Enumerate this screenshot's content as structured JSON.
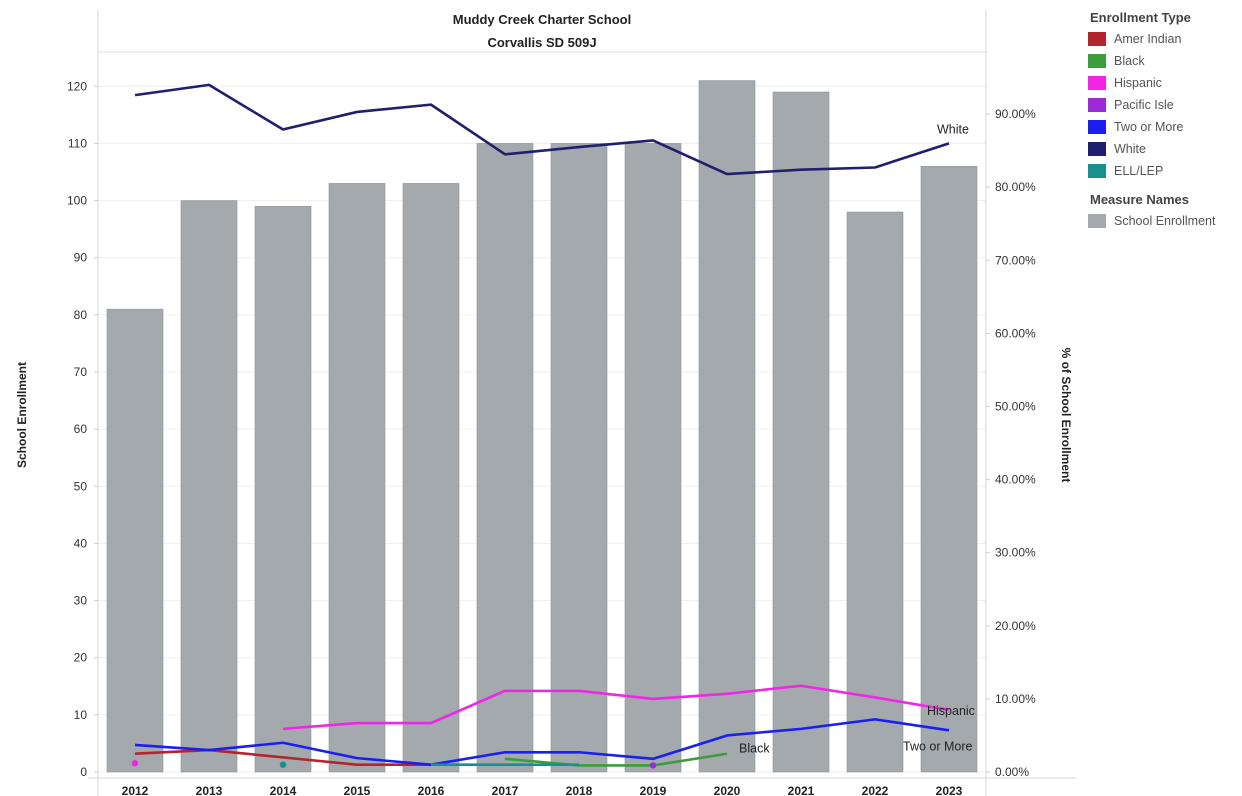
{
  "chart_data": {
    "type": "bar",
    "title": "Muddy Creek Charter School",
    "subtitle": "Corvallis SD 509J",
    "ylabel_left": "School Enrollment",
    "ylabel_right": "% of School Enrollment",
    "left_ylim": [
      0,
      126
    ],
    "left_ticks": [
      0,
      10,
      20,
      30,
      40,
      50,
      60,
      70,
      80,
      90,
      100,
      110,
      120
    ],
    "right_ylim": [
      0,
      0.985
    ],
    "right_ticks": [
      0,
      0.1,
      0.2,
      0.3,
      0.4,
      0.5,
      0.6,
      0.7,
      0.8,
      0.9
    ],
    "right_tick_labels": [
      "0.00%",
      "10.00%",
      "20.00%",
      "30.00%",
      "40.00%",
      "50.00%",
      "60.00%",
      "70.00%",
      "80.00%",
      "90.00%"
    ],
    "categories": [
      "2012",
      "2013",
      "2014",
      "2015",
      "2016",
      "2017",
      "2018",
      "2019",
      "2020",
      "2021",
      "2022",
      "2023"
    ],
    "bars": {
      "name": "School Enrollment",
      "color": "#a3a9ad",
      "values": [
        81,
        100,
        99,
        103,
        103,
        110,
        110,
        110,
        121,
        119,
        98,
        106
      ]
    },
    "series": [
      {
        "name": "Amer Indian",
        "color": "#b3242b",
        "label": "",
        "values": [
          0.025,
          0.03,
          0.02,
          0.01,
          0.01,
          null,
          null,
          null,
          null,
          null,
          null,
          null
        ]
      },
      {
        "name": "Black",
        "color": "#3b9e3b",
        "label": "Black",
        "values": [
          null,
          null,
          null,
          null,
          null,
          0.018,
          0.009,
          0.009,
          0.025,
          null,
          null,
          null
        ]
      },
      {
        "name": "Hispanic",
        "color": "#f025e6",
        "label": "Hispanic",
        "values": [
          0.012,
          null,
          0.059,
          0.067,
          0.067,
          0.111,
          0.111,
          0.1,
          0.107,
          0.118,
          0.102,
          0.085
        ]
      },
      {
        "name": "Pacific Isle",
        "color": "#9b2bd6",
        "label": "",
        "values": [
          null,
          null,
          null,
          null,
          null,
          null,
          null,
          0.009,
          null,
          null,
          null,
          null
        ]
      },
      {
        "name": "Two or More",
        "color": "#1a1ff0",
        "label": "Two or More",
        "values": [
          0.037,
          0.03,
          0.04,
          0.019,
          0.01,
          0.027,
          0.027,
          0.018,
          0.05,
          0.059,
          0.072,
          0.057
        ]
      },
      {
        "name": "White",
        "color": "#1f1f6e",
        "label": "White",
        "values": [
          0.926,
          0.94,
          0.879,
          0.903,
          0.913,
          0.845,
          0.855,
          0.864,
          0.818,
          0.824,
          0.827,
          0.86
        ]
      },
      {
        "name": "ELL/LEP",
        "color": "#17908f",
        "label": "",
        "values": [
          null,
          null,
          0.01,
          null,
          0.01,
          0.01,
          0.01,
          null,
          null,
          null,
          null,
          null
        ]
      }
    ]
  },
  "legend": {
    "enrollment_title": "Enrollment Type",
    "enrollment_items": [
      {
        "label": "Amer Indian",
        "color": "#b3242b"
      },
      {
        "label": "Black",
        "color": "#3b9e3b"
      },
      {
        "label": "Hispanic",
        "color": "#f025e6"
      },
      {
        "label": "Pacific Isle",
        "color": "#9b2bd6"
      },
      {
        "label": "Two or More",
        "color": "#1a1ff0"
      },
      {
        "label": "White",
        "color": "#1f1f6e"
      },
      {
        "label": "ELL/LEP",
        "color": "#17908f"
      }
    ],
    "measure_title": "Measure Names",
    "measure_items": [
      {
        "label": "School Enrollment",
        "color": "#a3a9ad"
      }
    ]
  }
}
